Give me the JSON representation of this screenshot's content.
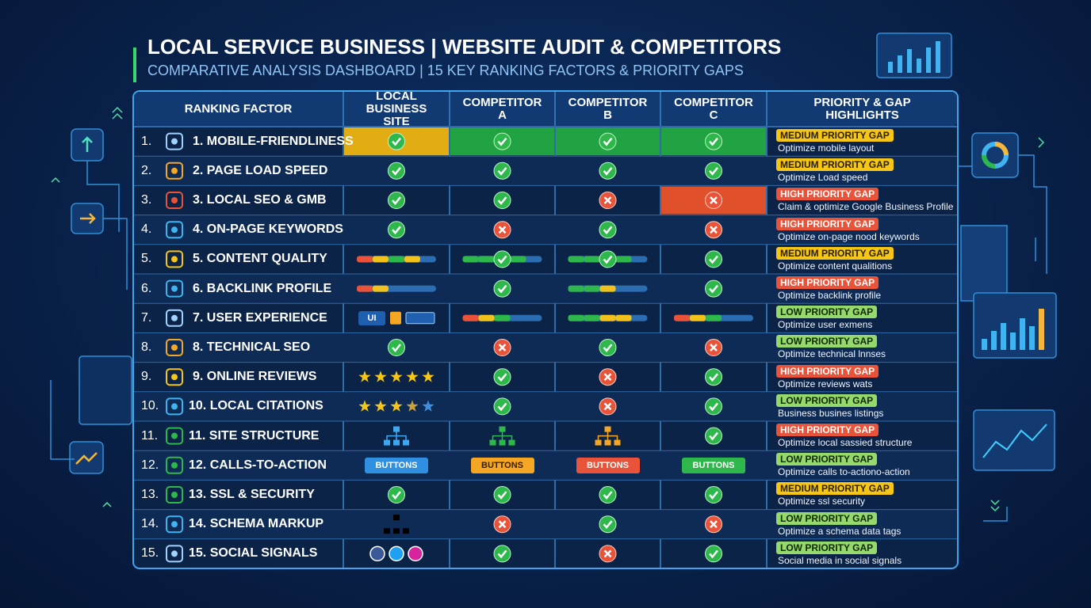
{
  "header": {
    "title": "LOCAL SERVICE BUSINESS | WEBSITE AUDIT & COMPETITORS",
    "subtitle": "COMPARATIVE ANALYSIS DASHBOARD | 15 KEY RANKING FACTORS & PRIORITY GAPS"
  },
  "table": {
    "columns": [
      "RANKING FACTOR",
      "LOCAL BUSINESS SITE",
      "COMPETITOR A",
      "COMPETITOR B",
      "COMPETITOR C",
      "PRIORITY & GAP HIGHLIGHTS"
    ],
    "rows": [
      {
        "number": "1.",
        "factor": "1. MOBILE-FRIENDLINESS",
        "priority": "MEDIUM PRIORITY GAP",
        "note": "Optimize mobile layout"
      },
      {
        "number": "2.",
        "factor": "2. PAGE LOAD SPEED",
        "priority": "MEDIUM PRIORITY GAP",
        "note": "Optimize Load speed"
      },
      {
        "number": "3.",
        "factor": "3. LOCAL SEO & GMB",
        "priority": "HIGH PRIORITY GAP",
        "note": "Claim & optimize Google Business Profile"
      },
      {
        "number": "4.",
        "factor": "4. ON-PAGE KEYWORDS",
        "priority": "HIGH PRIORITY GAP",
        "note": "Optimize on-page nood keywords"
      },
      {
        "number": "5.",
        "factor": "5. CONTENT QUALITY",
        "priority": "MEDIUM PRIORITY GAP",
        "note": "Optimize content qualitions"
      },
      {
        "number": "6.",
        "factor": "6. BACKLINK PROFILE",
        "priority": "HIGH PRIORITY GAP",
        "note": "Optimize backlink profile"
      },
      {
        "number": "7.",
        "factor": "7. USER EXPERIENCE",
        "priority": "LOW PRIORITY GAP",
        "note": "Optimize user exmens",
        "cell_labels": [
          "UI"
        ]
      },
      {
        "number": "8.",
        "factor": "8. TECHNICAL SEO",
        "priority": "LOW PRIORITY GAP",
        "note": "Optimize technical lnnses"
      },
      {
        "number": "9.",
        "factor": "9. ONLINE REVIEWS",
        "priority": "HIGH PRIORITY GAP",
        "note": "Optimize reviews wats"
      },
      {
        "number": "10.",
        "factor": "10. LOCAL CITATIONS",
        "priority": "LOW PRIORITY GAP",
        "note": "Business busines listings"
      },
      {
        "number": "11.",
        "factor": "11. SITE STRUCTURE",
        "priority": "HIGH PRIORITY GAP",
        "note": "Optimize local sassied structure"
      },
      {
        "number": "12.",
        "factor": "12. CALLS-TO-ACTION",
        "priority": "LOW PRIORITY GAP",
        "note": "Optimize calls to-actiono-action",
        "cell_labels": [
          "BUTTONS",
          "BUTTONS",
          "BUTTONS",
          "BUTTONS"
        ]
      },
      {
        "number": "13.",
        "factor": "13. SSL & SECURITY",
        "priority": "MEDIUM PRIORITY GAP",
        "note": "Optimize ssl security"
      },
      {
        "number": "14.",
        "factor": "14. SCHEMA MARKUP",
        "priority": "LOW PRIORITY GAP",
        "note": "Optimize a schema data tags"
      },
      {
        "number": "15.",
        "factor": "15. SOCIAL SIGNALS",
        "priority": "LOW PRIORITY GAP",
        "note": "Social media in social signals"
      }
    ]
  }
}
